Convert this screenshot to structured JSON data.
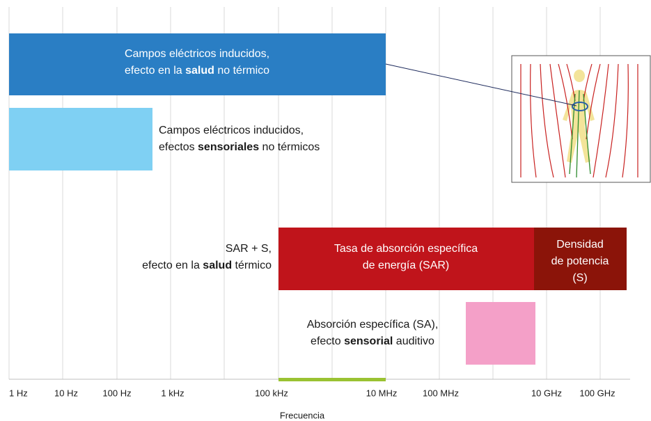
{
  "axis": {
    "ticks": [
      "1 Hz",
      "10 Hz",
      "100 Hz",
      "1 kHz",
      "100 kHz",
      "10 MHz",
      "100 MHz",
      "10 GHz",
      "100 GHz"
    ],
    "label": "Frecuencia"
  },
  "blocks": {
    "induced_health": [
      [
        "Campos eléctricos inducidos,"
      ],
      [
        "efecto en la ",
        "salud",
        " no térmico"
      ]
    ],
    "induced_sensory": [
      [
        "Campos eléctricos inducidos,"
      ],
      [
        "efectos ",
        "sensoriales",
        " no térmicos"
      ]
    ],
    "sar_s": [
      [
        "SAR + S,"
      ],
      [
        "efecto en la ",
        "salud",
        " térmico"
      ]
    ],
    "sar": [
      [
        "Tasa de absorción específica"
      ],
      [
        "de energía (SAR)"
      ]
    ],
    "power_density": [
      [
        "Densidad"
      ],
      [
        "de potencia"
      ],
      [
        "(S)"
      ]
    ],
    "sa": [
      [
        "Absorción específica (SA),"
      ],
      [
        "efecto ",
        "sensorial",
        " auditivo"
      ]
    ]
  }
}
